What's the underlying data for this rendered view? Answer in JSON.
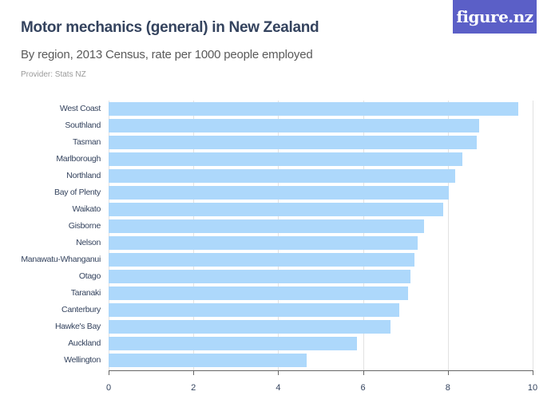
{
  "header": {
    "title": "Motor mechanics (general) in New Zealand",
    "subtitle": "By region, 2013 Census, rate per 1000 people employed",
    "provider": "Provider: Stats NZ",
    "logo": "figure.nz"
  },
  "colors": {
    "bar": "#add8fb",
    "title": "#34435e",
    "logo_bg": "#5b5fc7"
  },
  "chart_data": {
    "type": "bar",
    "orientation": "horizontal",
    "title": "Motor mechanics (general) in New Zealand",
    "subtitle": "By region, 2013 Census, rate per 1000 people employed",
    "xlabel": "",
    "ylabel": "",
    "xlim": [
      0,
      10
    ],
    "x_ticks": [
      "0",
      "2",
      "4",
      "6",
      "8",
      "10"
    ],
    "grid": true,
    "categories": [
      "West Coast",
      "Southland",
      "Tasman",
      "Marlborough",
      "Northland",
      "Bay of Plenty",
      "Waikato",
      "Gisborne",
      "Nelson",
      "Manawatu-Whanganui",
      "Otago",
      "Taranaki",
      "Canterbury",
      "Hawke's Bay",
      "Auckland",
      "Wellington"
    ],
    "values": [
      9.67,
      8.74,
      8.68,
      8.34,
      8.17,
      8.02,
      7.89,
      7.44,
      7.29,
      7.21,
      7.12,
      7.06,
      6.85,
      6.65,
      5.86,
      4.67
    ]
  }
}
